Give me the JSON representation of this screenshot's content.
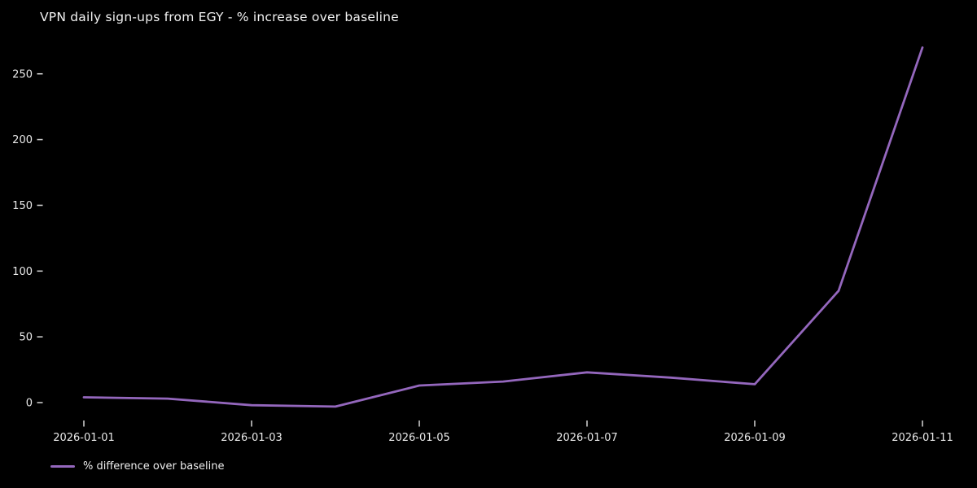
{
  "chart_data": {
    "type": "line",
    "title": "VPN daily sign-ups from EGY - % increase over baseline",
    "x": [
      "2026-01-01",
      "2026-01-02",
      "2026-01-03",
      "2026-01-04",
      "2026-01-05",
      "2026-01-06",
      "2026-01-07",
      "2026-01-08",
      "2026-01-09",
      "2026-01-10",
      "2026-01-11"
    ],
    "series": [
      {
        "name": "% difference over baseline",
        "values": [
          4,
          3,
          -2,
          -3,
          13,
          16,
          23,
          19,
          14,
          85,
          270
        ]
      }
    ],
    "x_tick_labels": [
      "2026-01-01",
      "2026-01-03",
      "2026-01-05",
      "2026-01-07",
      "2026-01-09",
      "2026-01-11"
    ],
    "y_ticks": [
      0,
      50,
      100,
      150,
      200,
      250
    ],
    "ylim": [
      -18,
      285
    ],
    "xlabel": "",
    "ylabel": "",
    "grid": false,
    "legend": {
      "label": "% difference over baseline",
      "position": "lower left"
    },
    "colors": {
      "background": "#000000",
      "line": "#9467bd",
      "title_text": "#f2f2f2",
      "tick_text": "#e9e9e9",
      "tick_mark": "#c8c8c8"
    }
  }
}
